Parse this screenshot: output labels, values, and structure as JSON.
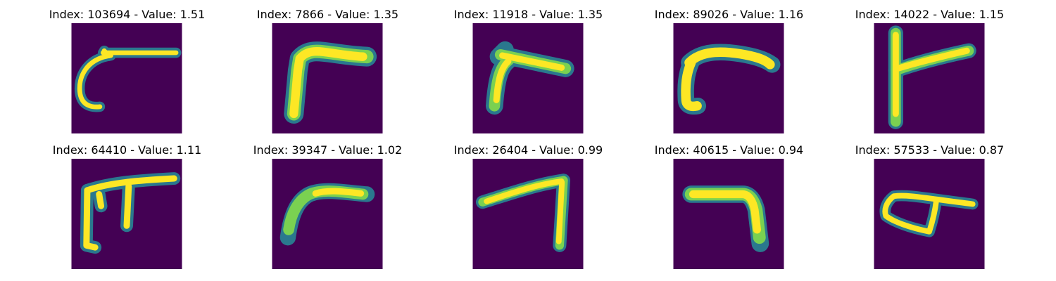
{
  "colors": {
    "background": "#440154",
    "stroke_core": "#fde725",
    "stroke_mid": "#7ad151",
    "stroke_edge": "#22a884",
    "stroke_halo": "#2a788e"
  },
  "panels": [
    {
      "title": "Index: 103694 - Value: 1.51",
      "glyph": "hook-with-curl"
    },
    {
      "title": "Index: 7866 - Value: 1.35",
      "glyph": "thick-corner"
    },
    {
      "title": "Index: 11918 - Value: 1.35",
      "glyph": "slanted-corner"
    },
    {
      "title": "Index: 89026 - Value: 1.16",
      "glyph": "short-hook"
    },
    {
      "title": "Index: 14022 - Value: 1.15",
      "glyph": "vertical-with-bar"
    },
    {
      "title": "Index: 64410 - Value: 1.11",
      "glyph": "double-stem-bar"
    },
    {
      "title": "Index: 39347 - Value: 1.02",
      "glyph": "soft-curve"
    },
    {
      "title": "Index: 26404 - Value: 0.99",
      "glyph": "seven-shape"
    },
    {
      "title": "Index: 40615 - Value: 0.94",
      "glyph": "right-angle-down"
    },
    {
      "title": "Index: 57533 - Value: 0.87",
      "glyph": "loop-with-bar"
    }
  ]
}
